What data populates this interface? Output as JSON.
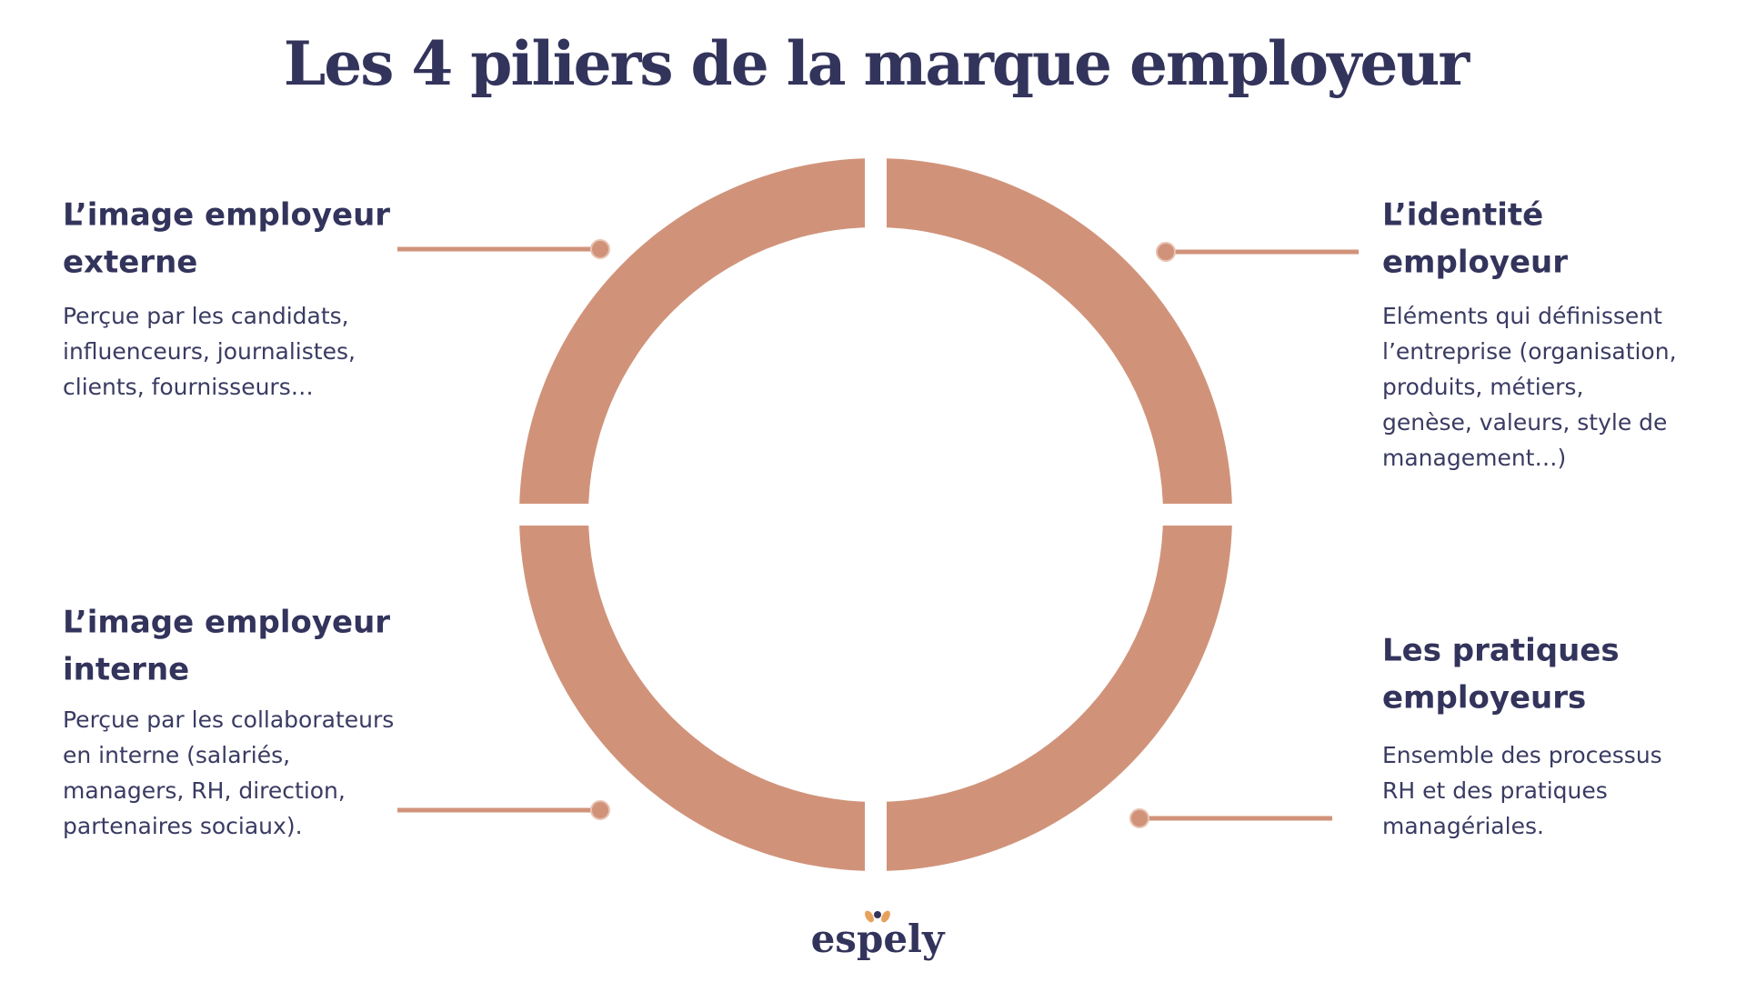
{
  "header": {
    "title": "Les 4 piliers de la marque employeur"
  },
  "pillars": [
    {
      "heading": [
        "L’image employeur",
        "externe"
      ],
      "body": [
        "Perçue par les candidats,",
        "influenceurs, journalistes,",
        "clients, fournisseurs…"
      ]
    },
    {
      "heading": [
        "L’identité",
        "employeur"
      ],
      "body": [
        "Eléments qui définissent",
        "l’entreprise (organisation,",
        "produits, métiers,",
        "genèse, valeurs, style de",
        "management…)"
      ]
    },
    {
      "heading": [
        "L’image employeur",
        "interne"
      ],
      "body": [
        "Perçue par les collaborateurs",
        "en interne (salariés,",
        "managers, RH, direction,",
        "partenaires sociaux)."
      ]
    },
    {
      "heading": [
        "Les pratiques",
        "employeurs"
      ],
      "body": [
        "Ensemble des processus",
        "RH et des pratiques",
        "managériales."
      ]
    }
  ],
  "footer": {
    "logo": "espely"
  }
}
